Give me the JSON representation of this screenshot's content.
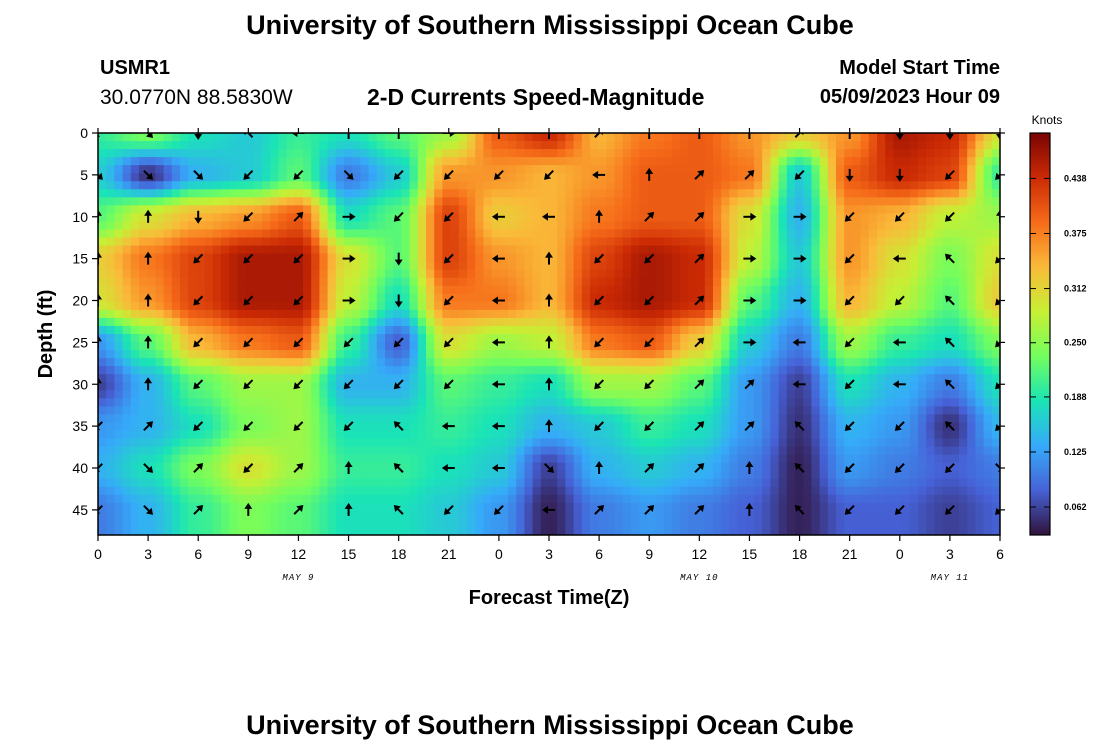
{
  "header": {
    "title": "University of Southern Mississippi Ocean Cube",
    "station": "USMR1",
    "coords": "30.0770N  88.5830W",
    "subtitle": "2-D Currents Speed-Magnitude",
    "model_start_label": "Model Start Time",
    "model_start_value": "05/09/2023 Hour 09"
  },
  "footer": {
    "title": "University of Southern Mississippi Ocean Cube"
  },
  "chart_data": {
    "type": "heatmap",
    "title": "2-D Currents Speed-Magnitude",
    "xlabel": "Forecast Time(Z)",
    "ylabel": "Depth (ft)",
    "x_range_hours": [
      0,
      54
    ],
    "ylim": [
      48,
      0
    ],
    "x_ticks": [
      {
        "h": 0,
        "label": "0"
      },
      {
        "h": 3,
        "label": "3"
      },
      {
        "h": 6,
        "label": "6"
      },
      {
        "h": 9,
        "label": "9"
      },
      {
        "h": 12,
        "label": "12"
      },
      {
        "h": 15,
        "label": "15"
      },
      {
        "h": 18,
        "label": "18"
      },
      {
        "h": 21,
        "label": "21"
      },
      {
        "h": 24,
        "label": "0"
      },
      {
        "h": 27,
        "label": "3"
      },
      {
        "h": 30,
        "label": "6"
      },
      {
        "h": 33,
        "label": "9"
      },
      {
        "h": 36,
        "label": "12"
      },
      {
        "h": 39,
        "label": "15"
      },
      {
        "h": 42,
        "label": "18"
      },
      {
        "h": 45,
        "label": "21"
      },
      {
        "h": 48,
        "label": "0"
      },
      {
        "h": 51,
        "label": "3"
      },
      {
        "h": 54,
        "label": "6"
      }
    ],
    "y_ticks": [
      0,
      5,
      10,
      15,
      20,
      25,
      30,
      35,
      40,
      45
    ],
    "date_labels": [
      {
        "h": 12,
        "label": "MAY 9"
      },
      {
        "h": 36,
        "label": "MAY 10"
      },
      {
        "h": 51,
        "label": "MAY 11"
      }
    ],
    "colorbar": {
      "title": "Knots",
      "min": 0.03,
      "max": 0.49,
      "ticks": [
        "0.438",
        "0.375",
        "0.312",
        "0.250",
        "0.188",
        "0.125",
        "0.062"
      ],
      "colors": [
        "#30123b",
        "#4662d7",
        "#36aaf9",
        "#1ae4b6",
        "#72fe5e",
        "#c7ef34",
        "#faba39",
        "#f66b19",
        "#cb2a04",
        "#7a0403"
      ]
    },
    "hours": [
      0,
      3,
      6,
      9,
      12,
      15,
      18,
      21,
      24,
      27,
      30,
      33,
      36,
      39,
      42,
      45,
      48,
      51,
      54
    ],
    "depths": [
      0,
      5,
      10,
      15,
      20,
      25,
      30,
      35,
      40,
      45
    ],
    "speed": [
      [
        0.2,
        0.24,
        0.18,
        0.16,
        0.2,
        0.18,
        0.22,
        0.26,
        0.4,
        0.44,
        0.34,
        0.38,
        0.4,
        0.36,
        0.32,
        0.36,
        0.46,
        0.44,
        0.3
      ],
      [
        0.16,
        0.05,
        0.14,
        0.16,
        0.22,
        0.1,
        0.16,
        0.36,
        0.36,
        0.34,
        0.36,
        0.4,
        0.4,
        0.38,
        0.16,
        0.4,
        0.44,
        0.42,
        0.2
      ],
      [
        0.22,
        0.3,
        0.34,
        0.36,
        0.4,
        0.18,
        0.22,
        0.42,
        0.32,
        0.34,
        0.38,
        0.4,
        0.4,
        0.3,
        0.14,
        0.36,
        0.34,
        0.28,
        0.26
      ],
      [
        0.32,
        0.38,
        0.42,
        0.46,
        0.46,
        0.3,
        0.22,
        0.42,
        0.36,
        0.34,
        0.42,
        0.46,
        0.44,
        0.28,
        0.16,
        0.36,
        0.3,
        0.24,
        0.3
      ],
      [
        0.3,
        0.36,
        0.42,
        0.46,
        0.46,
        0.28,
        0.18,
        0.38,
        0.38,
        0.34,
        0.44,
        0.46,
        0.44,
        0.22,
        0.14,
        0.34,
        0.28,
        0.22,
        0.32
      ],
      [
        0.12,
        0.22,
        0.34,
        0.38,
        0.4,
        0.2,
        0.08,
        0.3,
        0.26,
        0.28,
        0.38,
        0.4,
        0.32,
        0.16,
        0.1,
        0.26,
        0.2,
        0.18,
        0.24
      ],
      [
        0.06,
        0.14,
        0.22,
        0.26,
        0.26,
        0.14,
        0.14,
        0.22,
        0.2,
        0.18,
        0.26,
        0.26,
        0.22,
        0.12,
        0.06,
        0.18,
        0.14,
        0.1,
        0.18
      ],
      [
        0.12,
        0.14,
        0.18,
        0.24,
        0.26,
        0.18,
        0.18,
        0.2,
        0.18,
        0.14,
        0.16,
        0.2,
        0.18,
        0.12,
        0.05,
        0.14,
        0.12,
        0.05,
        0.14
      ],
      [
        0.14,
        0.18,
        0.24,
        0.3,
        0.26,
        0.2,
        0.2,
        0.18,
        0.16,
        0.06,
        0.14,
        0.16,
        0.14,
        0.1,
        0.04,
        0.12,
        0.1,
        0.08,
        0.1
      ],
      [
        0.1,
        0.14,
        0.2,
        0.24,
        0.22,
        0.18,
        0.18,
        0.16,
        0.12,
        0.04,
        0.1,
        0.12,
        0.1,
        0.08,
        0.04,
        0.08,
        0.08,
        0.06,
        0.08
      ]
    ],
    "direction_deg": [
      [
        135,
        45,
        90,
        225,
        180,
        270,
        270,
        0,
        270,
        270,
        315,
        270,
        270,
        270,
        315,
        270,
        90,
        90,
        90
      ],
      [
        45,
        45,
        45,
        135,
        135,
        45,
        135,
        135,
        135,
        135,
        180,
        270,
        315,
        315,
        135,
        90,
        90,
        135,
        135
      ],
      [
        270,
        270,
        90,
        135,
        315,
        0,
        135,
        135,
        180,
        180,
        270,
        315,
        315,
        0,
        0,
        135,
        135,
        135,
        270
      ],
      [
        270,
        270,
        135,
        135,
        135,
        0,
        90,
        135,
        180,
        270,
        135,
        135,
        315,
        0,
        0,
        135,
        180,
        225,
        135
      ],
      [
        270,
        270,
        135,
        135,
        135,
        0,
        90,
        135,
        180,
        270,
        135,
        135,
        315,
        0,
        0,
        135,
        135,
        225,
        135
      ],
      [
        270,
        270,
        135,
        135,
        135,
        135,
        135,
        135,
        180,
        270,
        135,
        135,
        315,
        0,
        180,
        135,
        180,
        225,
        135
      ],
      [
        270,
        270,
        135,
        135,
        135,
        135,
        135,
        135,
        180,
        270,
        135,
        135,
        315,
        315,
        180,
        135,
        180,
        225,
        135
      ],
      [
        135,
        315,
        135,
        135,
        135,
        135,
        225,
        180,
        180,
        270,
        135,
        135,
        315,
        315,
        225,
        135,
        135,
        225,
        135
      ],
      [
        135,
        45,
        315,
        135,
        315,
        270,
        225,
        180,
        180,
        45,
        270,
        315,
        315,
        270,
        225,
        135,
        135,
        135,
        45
      ],
      [
        135,
        45,
        315,
        270,
        315,
        270,
        225,
        135,
        135,
        180,
        315,
        315,
        315,
        270,
        225,
        135,
        135,
        135,
        135
      ]
    ]
  }
}
